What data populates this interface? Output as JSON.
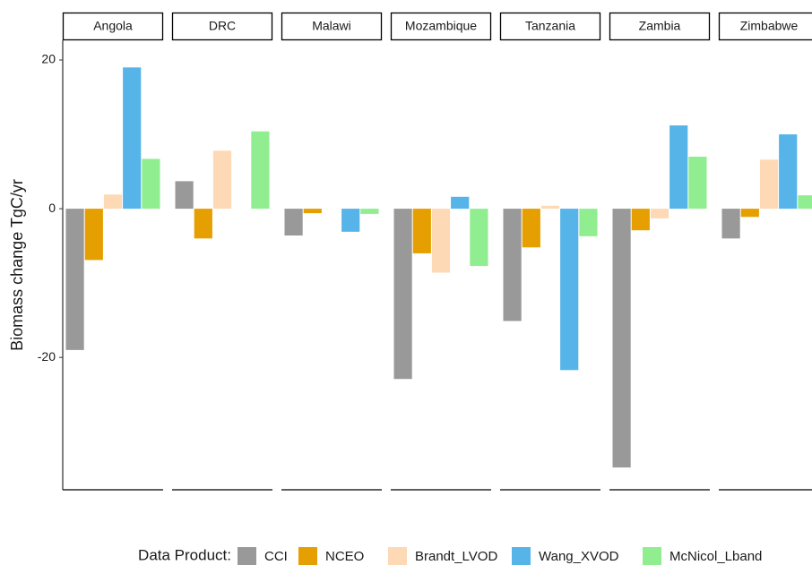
{
  "chart_data": {
    "type": "bar",
    "categories": [
      "Angola",
      "DRC",
      "Malawi",
      "Mozambique",
      "Tanzania",
      "Zambia",
      "Zimbabwe"
    ],
    "y_label": "Biomass change TgC/yr",
    "legend_title": "Data Product:",
    "series": [
      {
        "name": "CCI",
        "color": "#999999",
        "values": [
          -19.0,
          3.7,
          -3.6,
          -22.9,
          -15.1,
          -34.8,
          -4.0
        ]
      },
      {
        "name": "NCEO",
        "color": "#E69F00",
        "values": [
          -6.9,
          -4.0,
          -0.6,
          -6.0,
          -5.2,
          -2.9,
          -1.1
        ]
      },
      {
        "name": "Brandt_LVOD",
        "color": "#FDD9B5",
        "values": [
          1.9,
          7.8,
          null,
          -8.6,
          0.4,
          -1.3,
          6.6
        ]
      },
      {
        "name": "Wang_XVOD",
        "color": "#56B4E9",
        "values": [
          19.0,
          null,
          -3.1,
          1.6,
          -21.7,
          11.2,
          10.0
        ]
      },
      {
        "name": "McNicol_Lband",
        "color": "#90EE90",
        "values": [
          6.7,
          10.4,
          -0.7,
          -7.7,
          -3.7,
          7.0,
          1.8
        ]
      }
    ],
    "ylim": [
      -37.8,
      22.65
    ],
    "yticks": [
      -20,
      0,
      20
    ]
  }
}
